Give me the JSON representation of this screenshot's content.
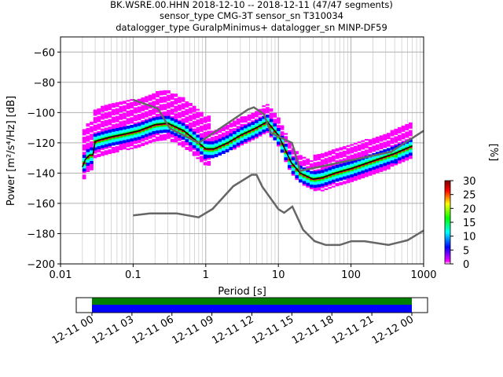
{
  "chart_data": {
    "type": "heatmap",
    "title_lines": [
      "BK.WSRE.00.HHN   2018-12-10 -- 2018-12-11  (47/47 segments)",
      "sensor_type CMG-3T sensor_sn T310034",
      "datalogger_type GuralpMinimus+ datalogger_sn MINP-DF59"
    ],
    "xlabel": "Period [s]",
    "ylabel": "Power [m²/s⁴/Hz] [dB]",
    "x_scale": "log",
    "xlim": [
      0.01,
      1000
    ],
    "ylim": [
      -200,
      -50
    ],
    "x_ticks": [
      {
        "value": 0.01,
        "label": "0.01"
      },
      {
        "value": 0.1,
        "label": "0.1"
      },
      {
        "value": 1,
        "label": "1"
      },
      {
        "value": 10,
        "label": "10"
      },
      {
        "value": 100,
        "label": "100"
      },
      {
        "value": 1000,
        "label": "1000"
      }
    ],
    "y_ticks": [
      {
        "value": -60,
        "label": "−60"
      },
      {
        "value": -80,
        "label": "−80"
      },
      {
        "value": -100,
        "label": "−100"
      },
      {
        "value": -120,
        "label": "−120"
      },
      {
        "value": -140,
        "label": "−140"
      },
      {
        "value": -160,
        "label": "−160"
      },
      {
        "value": -180,
        "label": "−180"
      },
      {
        "value": -200,
        "label": "−200"
      }
    ],
    "grid": true,
    "colorbar": {
      "label": "[%]",
      "range": [
        0,
        30
      ],
      "ticks": [
        {
          "value": 0,
          "label": "0"
        },
        {
          "value": 5,
          "label": "5"
        },
        {
          "value": 10,
          "label": "10"
        },
        {
          "value": 15,
          "label": "15"
        },
        {
          "value": 20,
          "label": "20"
        },
        {
          "value": 25,
          "label": "25"
        },
        {
          "value": 30,
          "label": "30"
        }
      ],
      "colors": [
        "#ffffff",
        "#ff00ff",
        "#0000ff",
        "#00ffff",
        "#00ff00",
        "#ffff00",
        "#ff0000",
        "#7f0000"
      ]
    },
    "series": [
      {
        "role": "mode",
        "color": "#000000",
        "x": [
          0.02,
          0.022,
          0.025,
          0.028,
          0.03,
          0.035,
          0.05,
          0.08,
          0.12,
          0.2,
          0.3,
          0.5,
          0.8,
          1.0,
          1.3,
          2,
          3,
          5,
          7,
          10,
          15,
          20,
          30,
          40,
          60,
          100,
          200,
          400,
          700
        ],
        "y": [
          -136,
          -131,
          -128,
          -128,
          -119,
          -118,
          -116,
          -114,
          -112,
          -108,
          -107,
          -112,
          -120,
          -124,
          -124,
          -120,
          -115,
          -110,
          -106,
          -115,
          -133,
          -140,
          -144,
          -143,
          -140,
          -137,
          -132,
          -127,
          -122
        ]
      },
      {
        "role": "new high noise model",
        "color": "#666666",
        "x": [
          0.1,
          0.22,
          0.32,
          0.8,
          3.8,
          4.6,
          6.3,
          7.9,
          15.4,
          20,
          354.8,
          1000
        ],
        "y": [
          -91.5,
          -97.4,
          -110.5,
          -120,
          -98,
          -96.5,
          -101,
          -113.5,
          -120,
          -138.5,
          -126,
          -112
        ]
      },
      {
        "role": "new low noise model",
        "color": "#666666",
        "x": [
          0.1,
          0.17,
          0.4,
          0.8,
          1.24,
          2.4,
          4.3,
          5.0,
          6.0,
          10.0,
          12.0,
          15.6,
          21.9,
          31.6,
          45,
          70,
          101,
          154,
          328,
          600,
          1000
        ],
        "y": [
          -168,
          -166.7,
          -166.7,
          -169.2,
          -163.7,
          -148.6,
          -141.1,
          -141.1,
          -149.0,
          -163.8,
          -166.2,
          -162.1,
          -177.5,
          -185.0,
          -187.5,
          -187.5,
          -185.0,
          -185.0,
          -187.5,
          -184.4,
          -178
        ]
      }
    ],
    "time_axis": {
      "labels": [
        "12-11 00",
        "12-11 03",
        "12-11 06",
        "12-11 09",
        "12-11 12",
        "12-11 15",
        "12-11 18",
        "12-11 21",
        "12-12 00"
      ],
      "coverage_color": "#008000",
      "data_color": "#0000ff"
    }
  }
}
